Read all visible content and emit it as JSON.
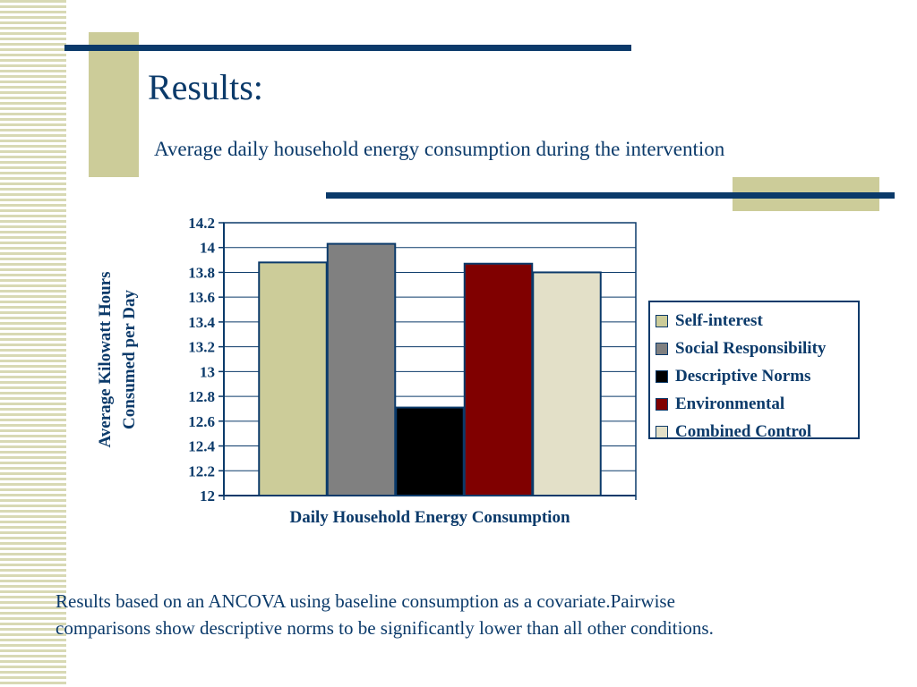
{
  "slide": {
    "title": "Results:",
    "subtitle": "Average daily household energy consumption during the intervention",
    "note_line1": "Results based on an ANCOVA using baseline consumption as a covariate.Pairwise",
    "note_line2": "comparisons show descriptive norms to be significantly lower than all other conditions."
  },
  "theme": {
    "accent": "#0b3a6a",
    "decor": "#cccc99"
  },
  "chart_data": {
    "type": "bar",
    "title": "",
    "xlabel": "Daily Household Energy Consumption",
    "ylabel_line1": "Average Kilowatt Hours",
    "ylabel_line2": "Consumed per Day",
    "ylim": [
      12,
      14.2
    ],
    "yticks": [
      "14.2",
      "14",
      "13.8",
      "13.6",
      "13.4",
      "13.2",
      "13",
      "12.8",
      "12.6",
      "12.4",
      "12.2",
      "12"
    ],
    "grid": true,
    "legend_position": "right",
    "series": [
      {
        "name": "Self-interest",
        "value": 13.88,
        "color": "#cccc99"
      },
      {
        "name": "Social Responsibility",
        "value": 14.03,
        "color": "#808080"
      },
      {
        "name": "Descriptive Norms",
        "value": 12.71,
        "color": "#000000"
      },
      {
        "name": "Environmental",
        "value": 13.87,
        "color": "#800000"
      },
      {
        "name": "Combined Control",
        "value": 13.8,
        "color": "#e3e0c8"
      }
    ]
  }
}
